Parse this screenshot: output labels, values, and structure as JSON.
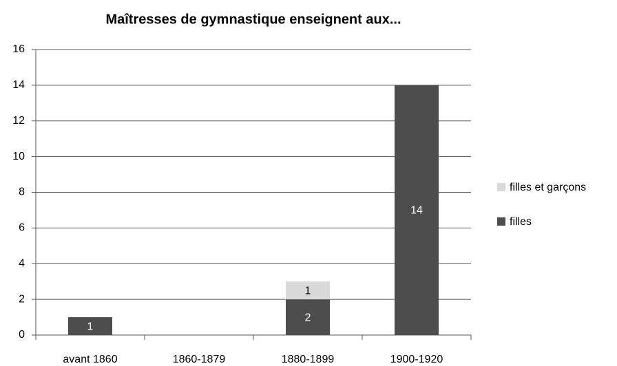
{
  "chart_data": {
    "type": "stacked_bar",
    "title": "Maîtresses de gymnastique enseignent aux...",
    "categories": [
      "avant 1860",
      "1860-1879",
      "1880-1899",
      "1900-1920"
    ],
    "series": [
      {
        "name": "filles",
        "color": "#4d4d4d",
        "values": [
          1,
          null,
          2,
          14
        ]
      },
      {
        "name": "filles et garçons",
        "color": "#d9d9d9",
        "values": [
          null,
          null,
          1,
          null
        ]
      }
    ],
    "ylim": [
      0,
      16
    ],
    "yticks": [
      0,
      2,
      4,
      6,
      8,
      10,
      12,
      14,
      16
    ],
    "grid": true,
    "legend": "right"
  }
}
